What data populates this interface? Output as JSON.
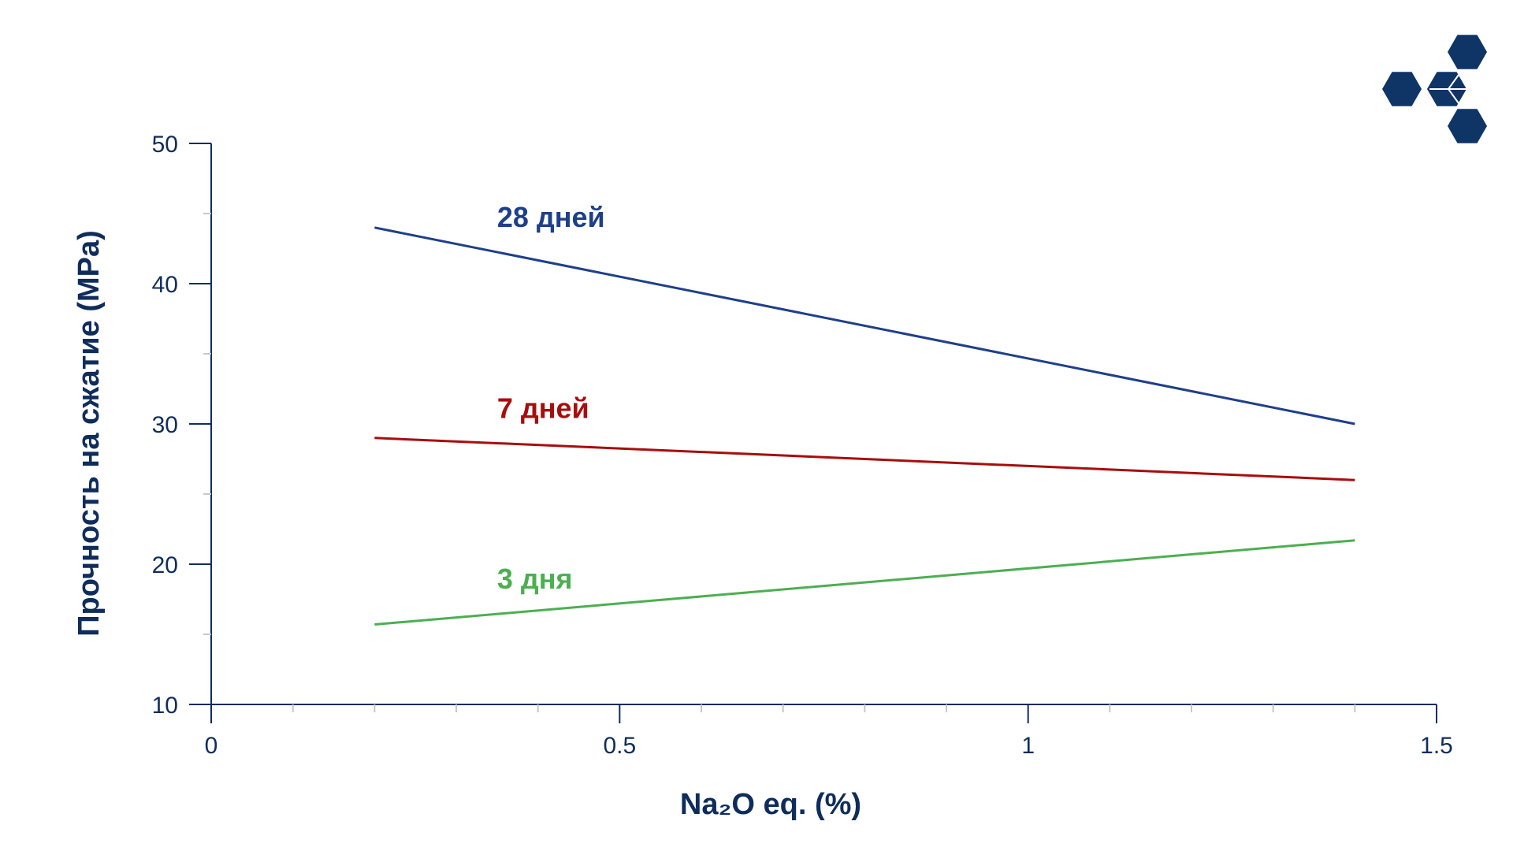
{
  "chart_data": {
    "type": "line",
    "xlabel": "Na₂O eq. (%)",
    "ylabel": "Прочность на сжатие (MPa)",
    "xlim": [
      0,
      1.5
    ],
    "ylim": [
      10,
      50
    ],
    "x_ticks": [
      0,
      0.5,
      1,
      1.5
    ],
    "x_tick_labels": [
      "0",
      "0.5",
      "1",
      "1.5"
    ],
    "y_ticks": [
      10,
      20,
      30,
      40,
      50
    ],
    "y_tick_labels": [
      "10",
      "20",
      "30",
      "40",
      "50"
    ],
    "grid": false,
    "series": [
      {
        "name": "28 дней",
        "color": "#1e3f8a",
        "x": [
          0.2,
          1.4
        ],
        "y": [
          44,
          30
        ]
      },
      {
        "name": "7 дней",
        "color": "#a80d0d",
        "x": [
          0.2,
          1.4
        ],
        "y": [
          29,
          26
        ]
      },
      {
        "name": "3 дня",
        "color": "#4caf50",
        "x": [
          0.2,
          1.4
        ],
        "y": [
          15.7,
          21.7
        ]
      }
    ]
  },
  "colors": {
    "axis": "#0f2d5c",
    "minor_tick": "#c8c8c8",
    "logo": "#0f3566"
  },
  "logo": {
    "icon": "hexagon-cluster-logo"
  }
}
